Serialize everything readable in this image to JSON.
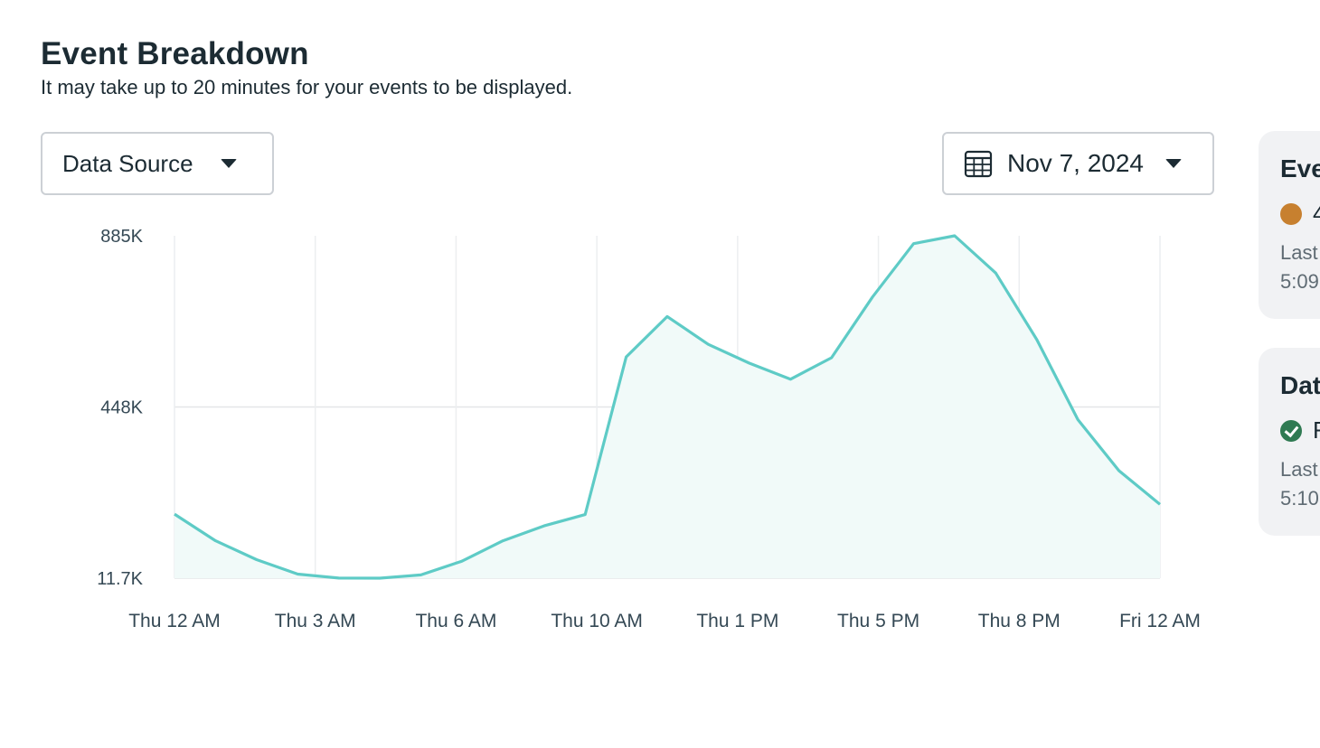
{
  "header": {
    "title": "Event Breakdown",
    "subtitle": "It may take up to 20 minutes for your events to be displayed."
  },
  "filters": {
    "data_source_label": "Data Source",
    "date_label": "Nov 7, 2024",
    "date_icon": "calendar-icon",
    "caret_icon": "caret-down-icon"
  },
  "chart_data": {
    "type": "area",
    "y_ticks": [
      "885K",
      "448K",
      "11.7K"
    ],
    "ylim": [
      11700,
      885000
    ],
    "x_ticks": [
      "Thu 12 AM",
      "Thu 3 AM",
      "Thu 6 AM",
      "Thu 10 AM",
      "Thu 1 PM",
      "Thu 5 PM",
      "Thu 8 PM",
      "Fri 12 AM"
    ],
    "grid": true,
    "series": [
      {
        "color": "#5ecbc6",
        "fill": "#f1faf9",
        "values": [
          175000,
          107000,
          59000,
          22000,
          12000,
          11700,
          20000,
          55000,
          107000,
          145000,
          174000,
          576000,
          679000,
          608000,
          560000,
          519000,
          574000,
          729000,
          865000,
          885000,
          790000,
          620000,
          416000,
          286000,
          200000
        ]
      }
    ]
  },
  "side_cards": {
    "events": {
      "title": "Eve",
      "status": "4",
      "status_color": "#c7802f",
      "meta_line1": "Last",
      "meta_line2": "5:09"
    },
    "data_source": {
      "title": "Dat",
      "status": "F",
      "status_color": "#2f7a52",
      "meta_line1": "Last",
      "meta_line2": "5:10"
    }
  }
}
